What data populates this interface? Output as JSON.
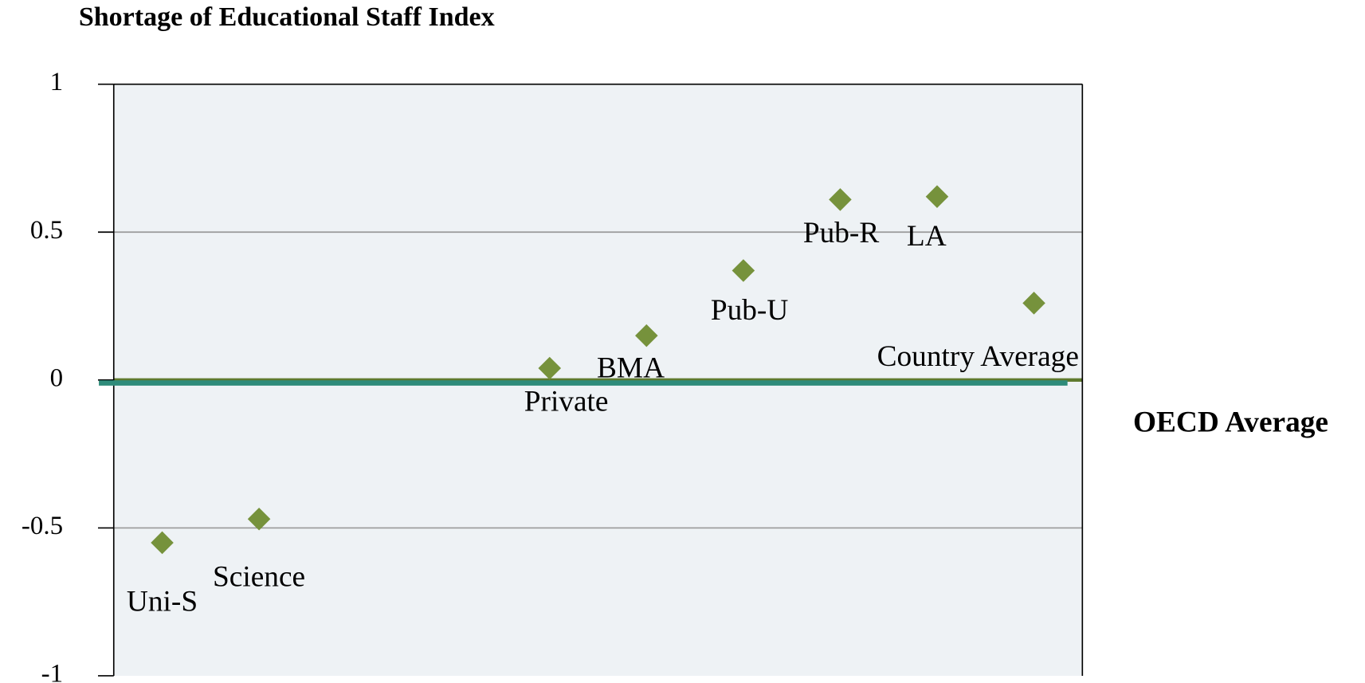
{
  "chart_data": {
    "type": "scatter",
    "title": "Shortage of Educational Staff Index",
    "categories": [
      "Uni-S",
      "Science",
      null,
      null,
      "Private",
      "BMA",
      "Pub-U",
      "Pub-R",
      "LA",
      "Country Average"
    ],
    "values": [
      -0.55,
      -0.47,
      null,
      null,
      0.04,
      0.15,
      0.37,
      0.61,
      0.62,
      0.26
    ],
    "color": "#76923c",
    "ylim": [
      -1,
      1
    ],
    "yticks": [
      -1,
      -0.5,
      0,
      0.5,
      1
    ],
    "grid": true,
    "reference_line": {
      "name": "OECD Average",
      "value": -0.01,
      "color": "#2e8b7a"
    }
  }
}
